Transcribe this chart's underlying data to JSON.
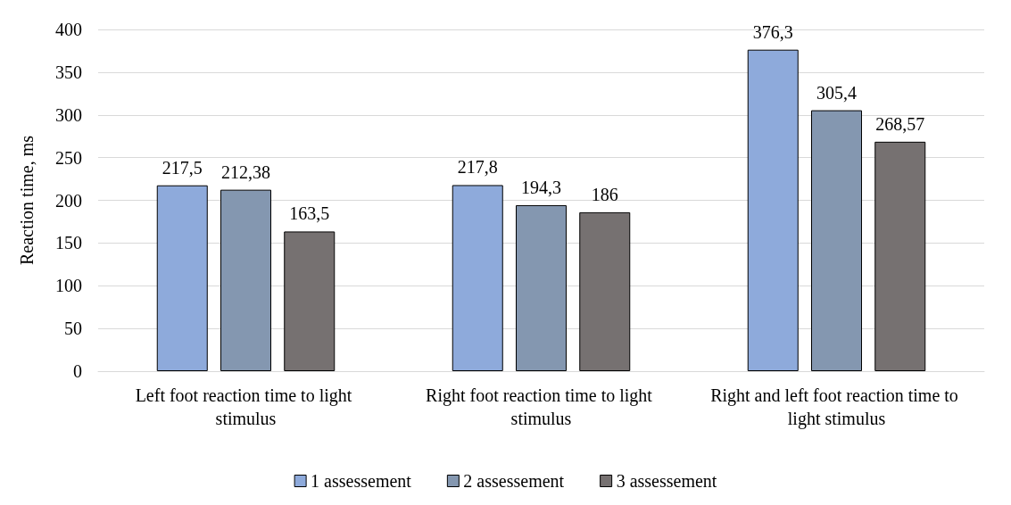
{
  "chart_data": {
    "type": "bar",
    "ylabel": "Reaction time, ms",
    "categories": [
      "Left foot reaction time to light stimulus",
      "Right foot reaction time to light stimulus",
      "Right and left foot reaction time to light stimulus"
    ],
    "series": [
      {
        "name": "1 assessement",
        "color": "#8eaadb",
        "values": [
          217.5,
          217.8,
          376.3
        ],
        "value_labels": [
          "217,5",
          "217,8",
          "376,3"
        ]
      },
      {
        "name": "2 assessement",
        "color": "#8497b0",
        "values": [
          212.38,
          194.3,
          305.4
        ],
        "value_labels": [
          "212,38",
          "194,3",
          "305,4"
        ]
      },
      {
        "name": "3 assessement",
        "color": "#767171",
        "values": [
          163.5,
          186,
          268.57
        ],
        "value_labels": [
          "163,5",
          "186",
          "268,57"
        ]
      }
    ],
    "ylim": [
      0,
      400
    ],
    "yticks": [
      0,
      50,
      100,
      150,
      200,
      250,
      300,
      350,
      400
    ],
    "grid": "y",
    "legend": "bottom"
  }
}
